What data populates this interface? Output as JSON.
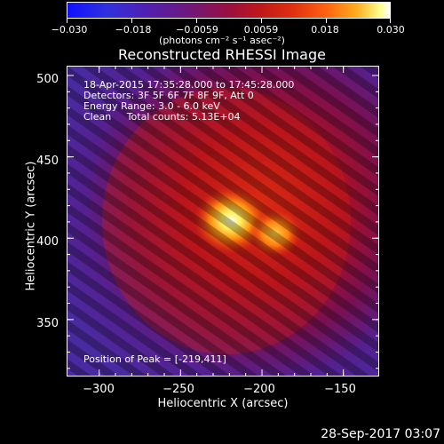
{
  "colorbar": {
    "tick_labels": [
      "−0.030",
      "−0.018",
      "−0.0059",
      "0.0059",
      "0.018",
      "0.030"
    ],
    "units": "(photons cm⁻² s⁻¹ asec⁻²)"
  },
  "plot": {
    "title": "Reconstructed RHESSI Image",
    "xlabel": "Heliocentric X (arcsec)",
    "ylabel": "Heliocentric Y (arcsec)",
    "x_ticks": [
      "−300",
      "−250",
      "−200",
      "−150"
    ],
    "y_ticks": [
      "500",
      "450",
      "400",
      "350"
    ],
    "x_range": [
      -320,
      -128
    ],
    "y_range": [
      315,
      506
    ]
  },
  "info": {
    "time_range": "18-Apr-2015 17:35:28.000 to 17:45:28.000",
    "detectors": "Detectors: 3F 5F 6F 7F 8F 9F, Att 0",
    "energy": "Energy Range: 3.0 - 6.0 keV",
    "clean": "Clean     Total counts: 5.13E+04",
    "peak": "Position of Peak = [-219,411]"
  },
  "footer": {
    "timestamp": "28-Sep-2017 03:07"
  },
  "chart_data": {
    "type": "heatmap",
    "title": "Reconstructed RHESSI Image",
    "xlabel": "Heliocentric X (arcsec)",
    "ylabel": "Heliocentric Y (arcsec)",
    "xlim": [
      -320,
      -128
    ],
    "ylim": [
      315,
      506
    ],
    "color_range": [
      -0.03,
      0.03
    ],
    "peak": [
      -219,
      411
    ],
    "sources": [
      {
        "x": -219,
        "y": 411,
        "value": 0.03
      },
      {
        "x": -192,
        "y": 403,
        "value": 0.02
      }
    ],
    "colormap": "blue-purple-red-yellow-white"
  }
}
